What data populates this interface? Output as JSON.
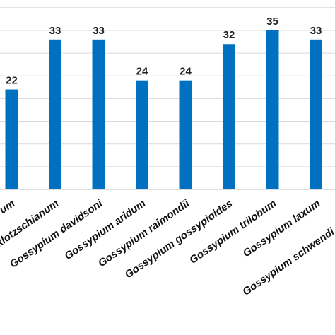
{
  "chart_data": {
    "type": "bar",
    "categories": [
      "Gossypium klotzschianum",
      "Gossypium davidsoni",
      "Gossypium aridum",
      "Gossypium raimondii",
      "Gossypium gossypioides",
      "Gossypium trilobum",
      "Gossypium laxum",
      "Gossypium schwendimanii"
    ],
    "visible_categories": [
      "um",
      "Gossypium klotzschianum",
      "Gossypium davidsoni",
      "Gossypium aridum",
      "Gossypium raimondii",
      "Gossypium gossypioides",
      "Gossypium trilobum",
      "Gossypium laxum",
      "Gossypium schwendi"
    ],
    "values": [
      22,
      33,
      33,
      24,
      24,
      32,
      35,
      33
    ],
    "data_labels": [
      "22",
      "33",
      "33",
      "24",
      "24",
      "32",
      "35",
      "33"
    ],
    "title": "",
    "xlabel": "",
    "ylabel": "",
    "ylim": [
      0,
      40
    ],
    "ytick_step": 5,
    "grid": true,
    "bar_color": "#0070C0",
    "grid_color": "#d9d9d9"
  }
}
